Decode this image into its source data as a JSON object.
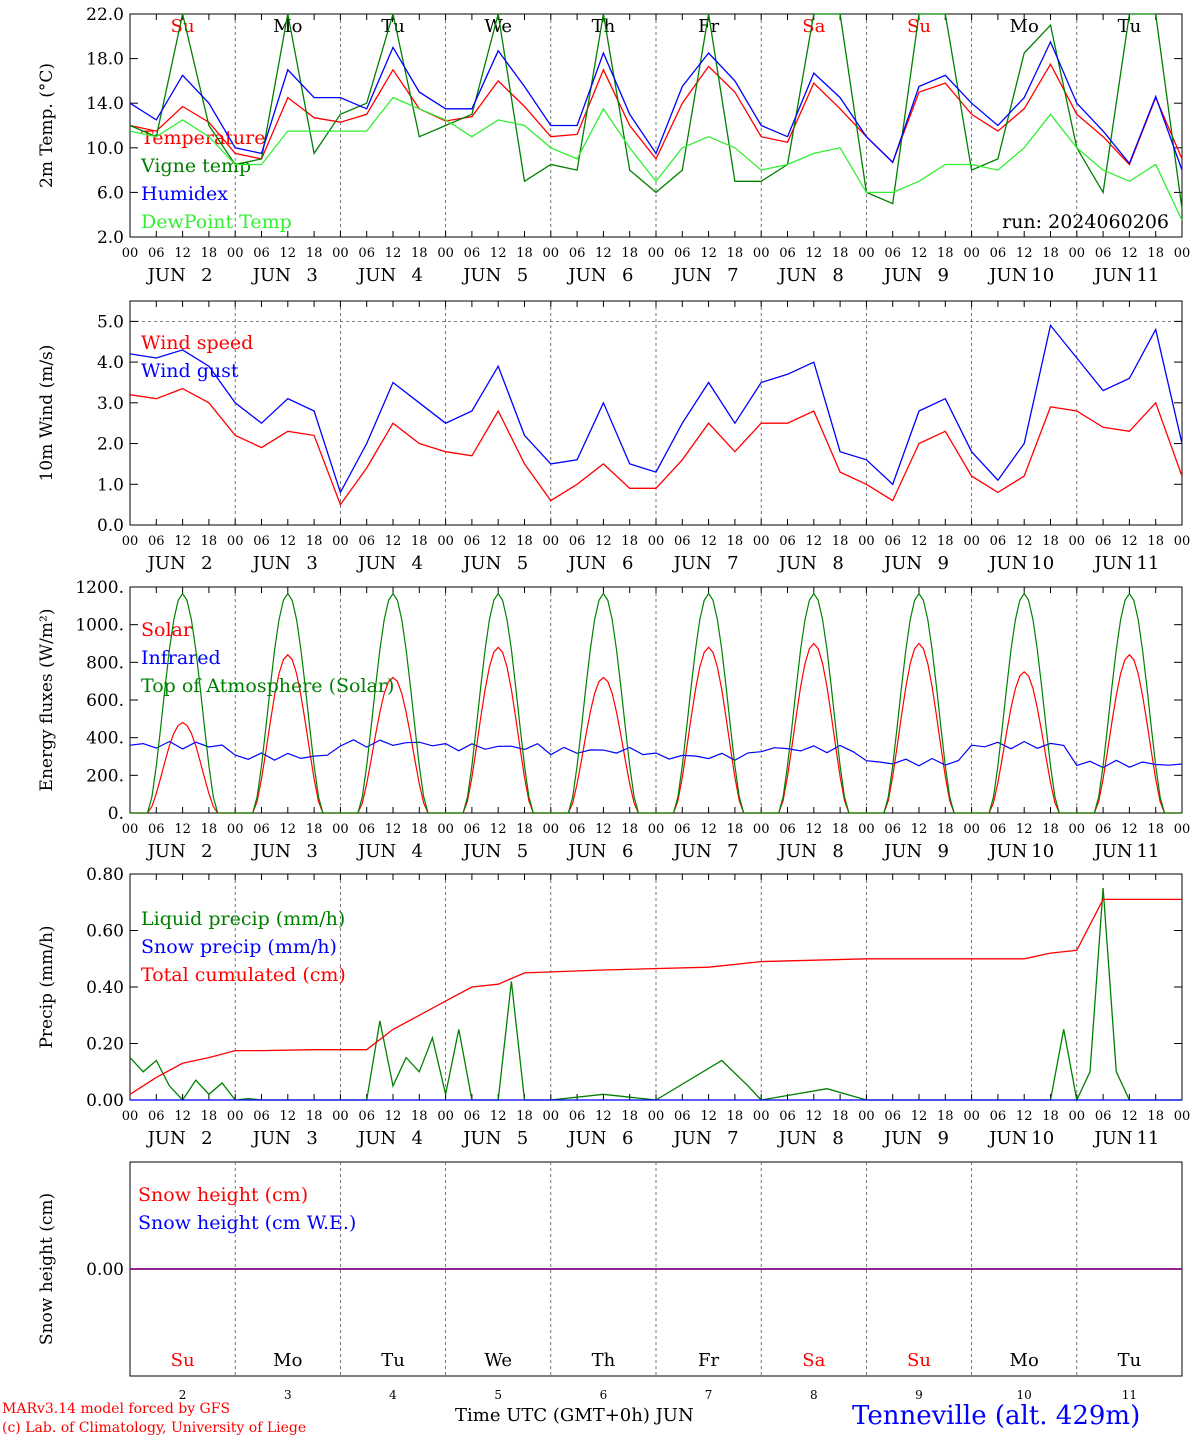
{
  "colors": {
    "red": "#ff0000",
    "green": "#008000",
    "blue": "#0000ff",
    "lightgreen": "#33ee33",
    "purple": "#800080"
  },
  "days": [
    {
      "short": "Su",
      "num": "2",
      "weekend": true
    },
    {
      "short": "Mo",
      "num": "3",
      "weekend": false
    },
    {
      "short": "Tu",
      "num": "4",
      "weekend": false
    },
    {
      "short": "We",
      "num": "5",
      "weekend": false
    },
    {
      "short": "Th",
      "num": "6",
      "weekend": false
    },
    {
      "short": "Fr",
      "num": "7",
      "weekend": false
    },
    {
      "short": "Sa",
      "num": "8",
      "weekend": true
    },
    {
      "short": "Su",
      "num": "9",
      "weekend": true
    },
    {
      "short": "Mo",
      "num": "10",
      "weekend": false
    },
    {
      "short": "Tu",
      "num": "11",
      "weekend": false
    }
  ],
  "hour_ticks": [
    "00",
    "06",
    "12",
    "18"
  ],
  "final_hour_tick": "00",
  "month": "JUN",
  "footer": {
    "model": "MARv3.14 model forced by GFS",
    "lab": "(c) Lab. of Climatology, University of Liege",
    "xlabel": "Time UTC (GMT+0h) JUN",
    "station": "Tenneville (alt. 429m)"
  },
  "chart_data": [
    {
      "type": "line",
      "ylabel": "2m Temp. (°C)",
      "ylim": [
        2.0,
        22.0
      ],
      "yticks": [
        2.0,
        6.0,
        10.0,
        14.0,
        18.0,
        22.0
      ],
      "tick_labels": [
        "2.0",
        "6.0",
        "10.0",
        "14.0",
        "18.0",
        "22.0"
      ],
      "show_day_names": true,
      "annotation": "run: 2024060206",
      "x_unit": "hours from 2024-06-02 00 UTC",
      "legend": "top-left",
      "series": [
        {
          "name": "Temperature",
          "color": "red",
          "x": [
            0,
            6,
            12,
            18,
            24,
            30,
            36,
            42,
            48,
            54,
            60,
            66,
            72,
            78,
            84,
            90,
            96,
            102,
            108,
            114,
            120,
            126,
            132,
            138,
            144,
            150,
            156,
            162,
            168,
            174,
            180,
            186,
            192,
            198,
            204,
            210,
            216,
            222,
            228,
            234,
            240
          ],
          "y": [
            12.0,
            11.5,
            13.7,
            12.3,
            9.5,
            9.0,
            14.5,
            12.7,
            12.3,
            13.0,
            17.0,
            13.5,
            12.4,
            12.8,
            16.0,
            13.7,
            11.0,
            11.2,
            17.0,
            12.0,
            9.0,
            14.0,
            17.3,
            15.0,
            11.0,
            10.5,
            15.8,
            13.5,
            11.0,
            8.7,
            15.0,
            15.8,
            13.0,
            11.5,
            13.5,
            17.5,
            13.0,
            11.0,
            8.5,
            14.5,
            9.0
          ]
        },
        {
          "name": "Vigne temp",
          "color": "green",
          "x": [
            0,
            6,
            12,
            18,
            24,
            30,
            36,
            42,
            48,
            54,
            60,
            66,
            72,
            78,
            84,
            90,
            96,
            102,
            108,
            114,
            120,
            126,
            132,
            138,
            144,
            150,
            156,
            162,
            168,
            174,
            180,
            186,
            192,
            198,
            204,
            210,
            216,
            222,
            228,
            234,
            240
          ],
          "y": [
            12.0,
            11.0,
            22.0,
            12.0,
            8.5,
            9.0,
            22.0,
            9.5,
            13.0,
            14.0,
            22.0,
            11.0,
            12.0,
            13.0,
            22.0,
            7.0,
            8.5,
            8.0,
            22.0,
            8.0,
            6.0,
            8.0,
            22.0,
            7.0,
            7.0,
            8.5,
            22.0,
            22.0,
            6.0,
            5.0,
            22.0,
            22.0,
            8.0,
            9.0,
            18.5,
            21.0,
            10.0,
            6.0,
            22.0,
            22.0,
            4.5
          ]
        },
        {
          "name": "Humidex",
          "color": "blue",
          "x": [
            0,
            6,
            12,
            18,
            24,
            30,
            36,
            42,
            48,
            54,
            60,
            66,
            72,
            78,
            84,
            90,
            96,
            102,
            108,
            114,
            120,
            126,
            132,
            138,
            144,
            150,
            156,
            162,
            168,
            174,
            180,
            186,
            192,
            198,
            204,
            210,
            216,
            222,
            228,
            234,
            240
          ],
          "y": [
            14.0,
            12.5,
            16.5,
            14.0,
            10.0,
            9.5,
            17.0,
            14.5,
            14.5,
            13.5,
            19.0,
            15.0,
            13.5,
            13.5,
            18.7,
            15.5,
            12.0,
            12.0,
            18.5,
            13.0,
            9.5,
            15.5,
            18.5,
            16.0,
            12.0,
            11.0,
            16.7,
            14.5,
            11.0,
            8.7,
            15.5,
            16.5,
            14.0,
            12.0,
            14.5,
            19.5,
            14.0,
            11.5,
            8.6,
            14.6,
            8.0
          ]
        },
        {
          "name": "DewPoint Temp",
          "color": "lightgreen",
          "x": [
            0,
            6,
            12,
            18,
            24,
            30,
            36,
            42,
            48,
            54,
            60,
            66,
            72,
            78,
            84,
            90,
            96,
            102,
            108,
            114,
            120,
            126,
            132,
            138,
            144,
            150,
            156,
            162,
            168,
            174,
            180,
            186,
            192,
            198,
            204,
            210,
            216,
            222,
            228,
            234,
            240
          ],
          "y": [
            11.5,
            11.0,
            12.5,
            11.0,
            8.5,
            8.5,
            11.5,
            11.5,
            11.5,
            11.5,
            14.5,
            13.5,
            12.5,
            11.0,
            12.5,
            12.0,
            10.0,
            9.0,
            13.5,
            10.0,
            7.0,
            10.0,
            11.0,
            10.0,
            8.0,
            8.5,
            9.5,
            10.0,
            6.0,
            6.0,
            7.0,
            8.5,
            8.5,
            8.0,
            10.0,
            13.0,
            10.0,
            8.0,
            7.0,
            8.5,
            3.5
          ]
        }
      ]
    },
    {
      "type": "line",
      "ylabel": "10m Wind (m/s)",
      "ylim": [
        0.0,
        5.5
      ],
      "yticks": [
        0.0,
        1.0,
        2.0,
        3.0,
        4.0,
        5.0
      ],
      "tick_labels": [
        "0.0",
        "1.0",
        "2.0",
        "3.0",
        "4.0",
        "5.0"
      ],
      "reference_line": 5.0,
      "legend": "top-left",
      "x_unit": "hours from 2024-06-02 00 UTC",
      "series": [
        {
          "name": "Wind speed",
          "color": "red",
          "x": [
            0,
            6,
            12,
            18,
            24,
            30,
            36,
            42,
            48,
            54,
            60,
            66,
            72,
            78,
            84,
            90,
            96,
            102,
            108,
            114,
            120,
            126,
            132,
            138,
            144,
            150,
            156,
            162,
            168,
            174,
            180,
            186,
            192,
            198,
            204,
            210,
            216,
            222,
            228,
            234,
            240
          ],
          "y": [
            3.2,
            3.1,
            3.35,
            3.0,
            2.2,
            1.9,
            2.3,
            2.2,
            0.5,
            1.4,
            2.5,
            2.0,
            1.8,
            1.7,
            2.8,
            1.5,
            0.6,
            1.0,
            1.5,
            0.9,
            0.9,
            1.6,
            2.5,
            1.8,
            2.5,
            2.5,
            2.8,
            1.3,
            1.0,
            0.6,
            2.0,
            2.3,
            1.2,
            0.8,
            1.2,
            2.9,
            2.8,
            2.4,
            2.3,
            3.0,
            1.2
          ]
        },
        {
          "name": "Wind gust",
          "color": "blue",
          "x": [
            0,
            6,
            12,
            18,
            24,
            30,
            36,
            42,
            48,
            54,
            60,
            66,
            72,
            78,
            84,
            90,
            96,
            102,
            108,
            114,
            120,
            126,
            132,
            138,
            144,
            150,
            156,
            162,
            168,
            174,
            180,
            186,
            192,
            198,
            204,
            210,
            216,
            222,
            228,
            234,
            240
          ],
          "y": [
            4.2,
            4.1,
            4.3,
            3.9,
            3.0,
            2.5,
            3.1,
            2.8,
            0.8,
            2.0,
            3.5,
            3.0,
            2.5,
            2.8,
            3.9,
            2.2,
            1.5,
            1.6,
            3.0,
            1.5,
            1.3,
            2.5,
            3.5,
            2.5,
            3.5,
            3.7,
            4.0,
            1.8,
            1.6,
            1.0,
            2.8,
            3.1,
            1.8,
            1.1,
            2.0,
            4.9,
            4.1,
            3.3,
            3.6,
            4.8,
            2.0
          ]
        }
      ]
    },
    {
      "type": "line",
      "ylabel": "Energy fluxes (W/m²)",
      "ylim": [
        0,
        1200
      ],
      "yticks": [
        0,
        200,
        400,
        600,
        800,
        1000,
        1200
      ],
      "tick_labels": [
        "0.",
        "200.",
        "400.",
        "600.",
        "800.",
        "1000.",
        "1200."
      ],
      "legend": "top-left",
      "x_unit": "hours from 2024-06-02 00 UTC",
      "peak_day_values": {
        "Solar": [
          480,
          840,
          720,
          880,
          720,
          880,
          900,
          900,
          750,
          840
        ],
        "Infrared": [
          360,
          300,
          370,
          350,
          330,
          300,
          340,
          270,
          360,
          260
        ],
        "Top of Atmosphere (Solar)": [
          1165,
          1165,
          1165,
          1165,
          1165,
          1165,
          1165,
          1165,
          1165,
          1165
        ]
      },
      "series": [
        {
          "name": "Solar",
          "color": "red"
        },
        {
          "name": "Infrared",
          "color": "blue"
        },
        {
          "name": "Top of Atmosphere (Solar)",
          "color": "green"
        }
      ]
    },
    {
      "type": "line",
      "ylabel": "Precip (mm/h)",
      "ylim": [
        0.0,
        0.8
      ],
      "yticks": [
        0.0,
        0.2,
        0.4,
        0.6,
        0.8
      ],
      "tick_labels": [
        "0.00",
        "0.20",
        "0.40",
        "0.60",
        "0.80"
      ],
      "legend": "top-left",
      "x_unit": "hours from 2024-06-02 00 UTC",
      "series": [
        {
          "name": "Liquid precip (mm/h)",
          "color": "green",
          "x": [
            0,
            3,
            6,
            9,
            12,
            15,
            18,
            21,
            24,
            27,
            30,
            54,
            57,
            60,
            63,
            66,
            69,
            72,
            75,
            78,
            84,
            87,
            90,
            96,
            108,
            114,
            120,
            135,
            141,
            144,
            159,
            168,
            210,
            213,
            216,
            219,
            222,
            225,
            228,
            240
          ],
          "y": [
            0.15,
            0.1,
            0.14,
            0.05,
            0.0,
            0.07,
            0.02,
            0.06,
            0.0,
            0.005,
            0.0,
            0.0,
            0.28,
            0.05,
            0.15,
            0.1,
            0.22,
            0.02,
            0.25,
            0.0,
            0.0,
            0.42,
            0.0,
            0.0,
            0.02,
            0.01,
            0.0,
            0.14,
            0.05,
            0.0,
            0.04,
            0.0,
            0.0,
            0.25,
            0.0,
            0.1,
            0.75,
            0.1,
            0.0,
            0.0
          ]
        },
        {
          "name": "Snow precip (mm/h)",
          "color": "blue",
          "x": [
            0,
            240
          ],
          "y": [
            0.0,
            0.0
          ]
        },
        {
          "name": "Total cumulated (cm)",
          "color": "red",
          "x": [
            0,
            6,
            12,
            18,
            24,
            30,
            42,
            54,
            60,
            66,
            72,
            78,
            84,
            90,
            108,
            132,
            144,
            168,
            204,
            210,
            216,
            222,
            240
          ],
          "y": [
            0.02,
            0.08,
            0.13,
            0.15,
            0.175,
            0.175,
            0.178,
            0.178,
            0.25,
            0.3,
            0.35,
            0.4,
            0.41,
            0.45,
            0.46,
            0.47,
            0.49,
            0.5,
            0.5,
            0.52,
            0.53,
            0.71,
            0.71
          ]
        }
      ]
    },
    {
      "type": "line",
      "ylabel": "Snow height (cm)",
      "ylim": [
        -1.0,
        1.0
      ],
      "yticks": [
        0.0
      ],
      "tick_labels": [
        "0.00"
      ],
      "legend": "top-left",
      "show_day_names": true,
      "x_unit": "hours from 2024-06-02 00 UTC",
      "series": [
        {
          "name": "Snow height (cm)",
          "color": "red",
          "x": [
            0,
            240
          ],
          "y": [
            0.0,
            0.0
          ]
        },
        {
          "name": "Snow height (cm W.E.)",
          "color": "blue",
          "x": [
            0,
            240
          ],
          "y": [
            0.0,
            0.0
          ]
        }
      ]
    }
  ]
}
